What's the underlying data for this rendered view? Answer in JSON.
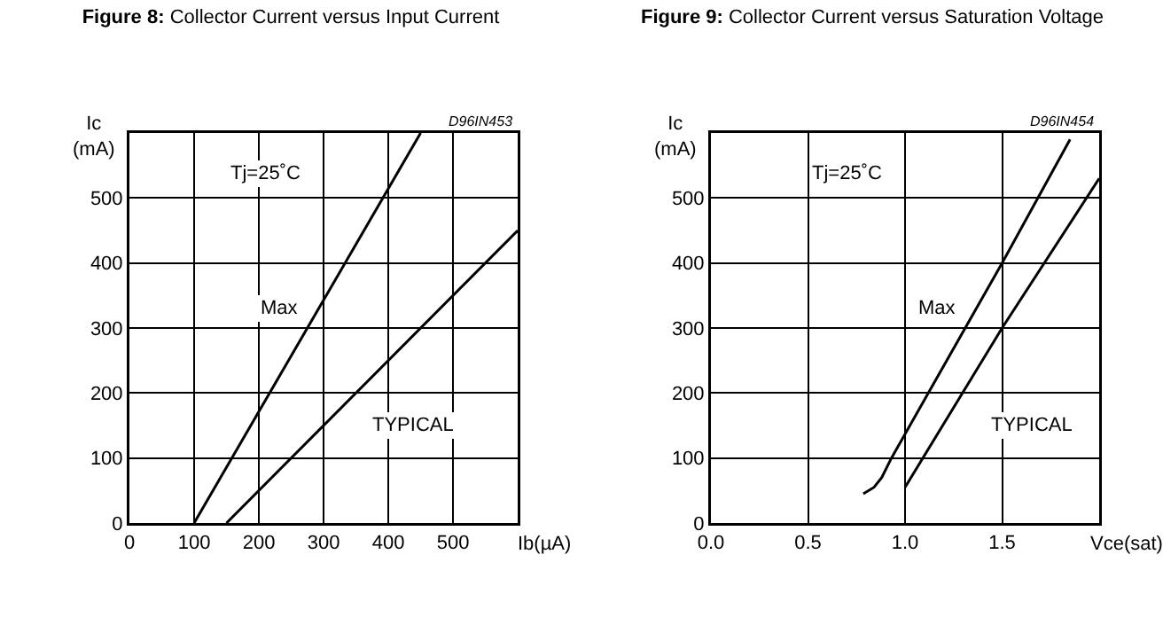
{
  "chart_data": [
    {
      "type": "line",
      "title": "Figure 8: Collector Current versus Input Current",
      "xlabel": "Ib(µA)",
      "ylabel": "Ic\n(mA)",
      "series": [
        {
          "name": "Max",
          "color": "#000000",
          "x": [
            100,
            450
          ],
          "values": [
            0,
            600
          ]
        },
        {
          "name": "TYPICAL",
          "color": "#000000",
          "x": [
            150,
            600
          ],
          "values": [
            0,
            450
          ]
        }
      ],
      "xlim": [
        0,
        600
      ],
      "xticks": [
        0,
        100,
        200,
        300,
        400,
        500
      ],
      "ylim": [
        0,
        600
      ],
      "yticks": [
        0,
        100,
        200,
        300,
        400,
        500
      ],
      "grid": true,
      "legend": false,
      "marker": "none",
      "line_style": "solid",
      "annotations": [
        "Tj=25˚C",
        "D96IN453"
      ]
    },
    {
      "type": "line",
      "title": "Figure 9: Collector Current versus Saturation Voltage",
      "xlabel": "Vce(sat)",
      "ylabel": "Ic\n(mA)",
      "series": [
        {
          "name": "Max",
          "color": "#000000",
          "x": [
            0.785,
            0.84,
            0.88,
            0.93,
            1.12,
            1.5,
            1.85
          ],
          "values": [
            45,
            55,
            70,
            100,
            200,
            400,
            590
          ]
        },
        {
          "name": "TYPICAL",
          "color": "#000000",
          "x": [
            1.0,
            1.5,
            2.0
          ],
          "values": [
            55,
            300,
            530
          ]
        }
      ],
      "xlim": [
        0,
        2.0
      ],
      "xticks": [
        {
          "value": 0,
          "label": "0.0"
        },
        0.5,
        {
          "value": 1,
          "label": "1.0"
        },
        1.5
      ],
      "ylim": [
        0,
        600
      ],
      "yticks": [
        0,
        100,
        200,
        300,
        400,
        500
      ],
      "grid": true,
      "legend": false,
      "marker": "none",
      "line_style": "solid",
      "annotations": [
        "Tj=25˚C",
        "D96IN454"
      ]
    }
  ]
}
